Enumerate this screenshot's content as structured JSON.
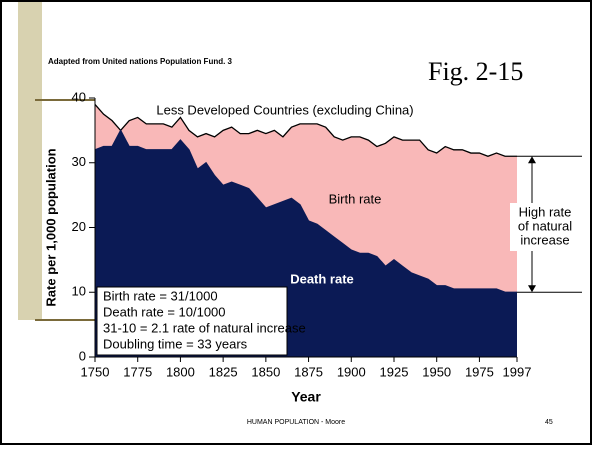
{
  "slide": {
    "source": "Adapted from United nations Population Fund. 3",
    "figure": "Fig. 2-15",
    "footer": "HUMAN POPULATION - Moore",
    "page": "45"
  },
  "chart_data": {
    "type": "area",
    "title": "Less Developed Countries (excluding China)",
    "x_label": "Year",
    "y_label": "Rate per 1,000 population",
    "x": [
      1750,
      1755,
      1760,
      1765,
      1770,
      1775,
      1780,
      1785,
      1790,
      1795,
      1800,
      1805,
      1810,
      1815,
      1820,
      1825,
      1830,
      1835,
      1840,
      1845,
      1850,
      1855,
      1860,
      1865,
      1870,
      1875,
      1880,
      1885,
      1890,
      1895,
      1900,
      1905,
      1910,
      1915,
      1920,
      1925,
      1930,
      1935,
      1940,
      1945,
      1950,
      1955,
      1960,
      1965,
      1970,
      1975,
      1980,
      1985,
      1990,
      1997
    ],
    "series": [
      {
        "name": "Birth rate",
        "color": "#f9b8b8",
        "values": [
          39,
          37.5,
          36.5,
          35,
          36.5,
          37,
          36,
          36,
          36,
          35.5,
          37,
          35,
          34,
          34.5,
          34,
          35,
          35.5,
          34.5,
          34.5,
          35,
          34.5,
          35,
          34,
          35.5,
          36,
          36,
          36,
          35.5,
          34,
          33.5,
          34,
          34,
          33.5,
          32.5,
          33,
          34,
          33.5,
          33.5,
          33.5,
          32,
          31.5,
          32.5,
          32,
          32,
          31.5,
          31.5,
          31,
          31.5,
          31,
          31
        ]
      },
      {
        "name": "Death rate",
        "color": "#0b1a55",
        "values": [
          32,
          32.5,
          32.5,
          35,
          32.5,
          32.5,
          32,
          32,
          32,
          32,
          33.5,
          32,
          29,
          30,
          28,
          26.5,
          27,
          26.5,
          26,
          24.5,
          23,
          23.5,
          24,
          24.5,
          23.5,
          21,
          20.5,
          19.5,
          18.5,
          17.5,
          16.5,
          16,
          16,
          15.5,
          14,
          15,
          14,
          13,
          12.5,
          12,
          11,
          11,
          10.5,
          10.5,
          10.5,
          10.5,
          10.5,
          10.5,
          10,
          10
        ]
      }
    ],
    "xlim": [
      1750,
      1997
    ],
    "xticks": [
      1750,
      1775,
      1800,
      1825,
      1850,
      1875,
      1900,
      1925,
      1950,
      1975,
      1997
    ],
    "ylim": [
      0,
      40
    ],
    "yticks": [
      0,
      10,
      20,
      30,
      40
    ],
    "bracket": {
      "from": 31,
      "to": 10,
      "label": [
        "High rate",
        "of natural",
        "increase"
      ]
    },
    "info_box": [
      "Birth rate = 31/1000",
      "Death rate = 10/1000",
      "31-10 = 2.1 rate of natural increase",
      "Doubling time = 33 years"
    ]
  }
}
